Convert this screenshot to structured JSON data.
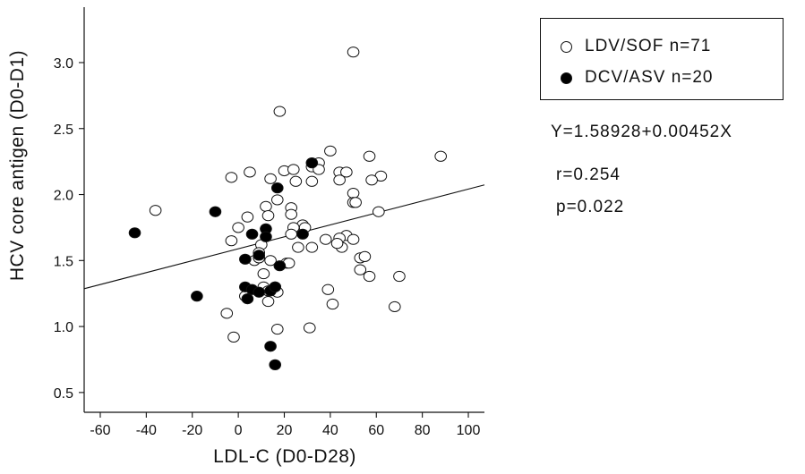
{
  "chart_data": {
    "type": "scatter",
    "xlabel": "LDL-C (D0-D28)",
    "ylabel": "HCV core antigen (D0-D1)",
    "xlim": [
      -67,
      107
    ],
    "ylim": [
      0.35,
      3.42
    ],
    "x_ticks": [
      -60,
      -40,
      -20,
      0,
      20,
      40,
      60,
      80,
      100
    ],
    "y_ticks": [
      0.5,
      1.0,
      1.5,
      2.0,
      2.5,
      3.0
    ],
    "x_tick_labels": [
      "-60",
      "-40",
      "-20",
      "0",
      "20",
      "40",
      "60",
      "80",
      "100"
    ],
    "y_tick_labels": [
      "0.5",
      "1.0",
      "1.5",
      "2.0",
      "2.5",
      "3.0"
    ],
    "grid": false,
    "legend_position": "top-right",
    "series": [
      {
        "name": "LDV/SOF n=71",
        "marker": "open-circle",
        "color": "#000000",
        "points": [
          [
            50,
            3.08
          ],
          [
            18,
            2.63
          ],
          [
            88,
            2.29
          ],
          [
            57,
            2.29
          ],
          [
            40,
            2.33
          ],
          [
            -36,
            1.88
          ],
          [
            -3,
            2.13
          ],
          [
            5,
            2.17
          ],
          [
            14,
            2.12
          ],
          [
            20,
            2.18
          ],
          [
            24,
            2.19
          ],
          [
            32,
            2.21
          ],
          [
            35,
            2.24
          ],
          [
            44,
            2.17
          ],
          [
            47,
            2.17
          ],
          [
            44,
            2.11
          ],
          [
            62,
            2.14
          ],
          [
            58,
            2.11
          ],
          [
            25,
            2.1
          ],
          [
            32,
            2.1
          ],
          [
            17,
            1.96
          ],
          [
            50,
            2.01
          ],
          [
            50,
            1.94
          ],
          [
            51,
            1.94
          ],
          [
            23,
            1.9
          ],
          [
            12,
            1.91
          ],
          [
            28,
            1.77
          ],
          [
            61,
            1.87
          ],
          [
            4,
            1.83
          ],
          [
            13,
            1.84
          ],
          [
            23,
            1.85
          ],
          [
            29,
            1.75
          ],
          [
            24,
            1.75
          ],
          [
            0,
            1.75
          ],
          [
            -3,
            1.65
          ],
          [
            10,
            1.62
          ],
          [
            47,
            1.69
          ],
          [
            38,
            1.66
          ],
          [
            44,
            1.67
          ],
          [
            50,
            1.66
          ],
          [
            9,
            1.56
          ],
          [
            26,
            1.6
          ],
          [
            32,
            1.6
          ],
          [
            45,
            1.6
          ],
          [
            53,
            1.52
          ],
          [
            43,
            1.63
          ],
          [
            7,
            1.5
          ],
          [
            14,
            1.5
          ],
          [
            21,
            1.48
          ],
          [
            55,
            1.53
          ],
          [
            22,
            1.48
          ],
          [
            11,
            1.4
          ],
          [
            53,
            1.43
          ],
          [
            57,
            1.38
          ],
          [
            70,
            1.38
          ],
          [
            16,
            1.3
          ],
          [
            11,
            1.3
          ],
          [
            17,
            1.26
          ],
          [
            39,
            1.28
          ],
          [
            13,
            1.19
          ],
          [
            41,
            1.17
          ],
          [
            68,
            1.15
          ],
          [
            -5,
            1.1
          ],
          [
            31,
            0.99
          ],
          [
            17,
            0.98
          ],
          [
            -2,
            0.92
          ],
          [
            13,
            1.27
          ],
          [
            3,
            1.23
          ],
          [
            35,
            2.19
          ],
          [
            9,
            1.52
          ],
          [
            23,
            1.7
          ]
        ]
      },
      {
        "name": "DCV/ASV n=20",
        "marker": "filled-circle",
        "color": "#000000",
        "points": [
          [
            -45,
            1.71
          ],
          [
            -10,
            1.87
          ],
          [
            -18,
            1.23
          ],
          [
            17,
            2.05
          ],
          [
            32,
            2.24
          ],
          [
            12,
            1.74
          ],
          [
            6,
            1.7
          ],
          [
            12,
            1.68
          ],
          [
            28,
            1.7
          ],
          [
            9,
            1.54
          ],
          [
            3,
            1.51
          ],
          [
            18,
            1.46
          ],
          [
            3,
            1.3
          ],
          [
            6,
            1.28
          ],
          [
            9,
            1.26
          ],
          [
            14,
            1.27
          ],
          [
            4,
            1.21
          ],
          [
            16,
            1.3
          ],
          [
            14,
            0.85
          ],
          [
            16,
            0.71
          ]
        ]
      }
    ],
    "regression": {
      "intercept": 1.58928,
      "slope": 0.00452,
      "x_range": [
        -67,
        107
      ]
    }
  },
  "legend": {
    "series_a": "LDV/SOF n=71",
    "series_b": "DCV/ASV n=20"
  },
  "stats": {
    "equation": "Y=1.58928+0.00452X",
    "r": "r=0.254",
    "p": "p=0.022"
  }
}
